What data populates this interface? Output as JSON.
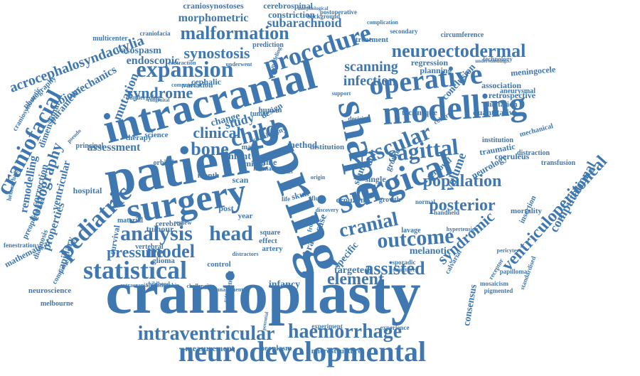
{
  "color": "#3f78b1",
  "words": [
    "cranioplasty",
    "spring",
    "patient",
    "intracranial",
    "neurodevelopmental",
    "surgery",
    "shape",
    "surgical",
    "modelling",
    "operative",
    "pediatric",
    "statistical",
    "expansion",
    "analysis",
    "head",
    "craniofacial",
    "vascular",
    "sagittal",
    "ventriculoperitoneal",
    "outcome",
    "procedure",
    "malformation",
    "neuroectodermal",
    "intraventricular",
    "haemorrhage",
    "posterior",
    "population",
    "cranial",
    "assisted",
    "child",
    "model",
    "synostosis",
    "acrocephalosyndactylia",
    "infection",
    "scanning",
    "clinical",
    "bone",
    "pressure",
    "syndromic",
    "tomography",
    "syndrome",
    "element",
    "computational",
    "endoscopic",
    "mutation",
    "subarachnoid",
    "vasospasm",
    "biomechanics",
    "morphometric",
    "craniosynostoses",
    "cerebrospinal",
    "constriction",
    "conclusion",
    "volume",
    "association",
    "retrospective",
    "technique",
    "study",
    "change",
    "infant",
    "assessment",
    "dimensional",
    "parameter",
    "correction",
    "ventricular",
    "properties",
    "capillary",
    "remodelling",
    "mathematical",
    "consensus",
    "targeted",
    "specific",
    "infancy",
    "brain",
    "case",
    "shunt",
    "fault",
    "group",
    "neurology",
    "coeruleus",
    "traumatic",
    "mortality",
    "insertion",
    "transfusion",
    "melanotic",
    "tumour",
    "survival",
    "vertebral",
    "glioma",
    "control",
    "measurement",
    "neoplasm",
    "microstructure",
    "experiment",
    "experience",
    "craniofacia",
    "multicenter",
    "treatment",
    "secondary",
    "circumference",
    "regression",
    "prediction",
    "understanding",
    "technology",
    "meningocele",
    "aneurysmal",
    "dilatation",
    "quantitative",
    "institution",
    "mechanical",
    "distraction",
    "removal",
    "craniotomy",
    "planning",
    "variation",
    "cephalic",
    "undergoing",
    "material",
    "cerebral",
    "orbital",
    "therapy",
    "hospital",
    "preoperative",
    "diagnosis",
    "fenestration",
    "neuroscience",
    "melbourne",
    "postoperative",
    "morphological",
    "background",
    "complication",
    "photography",
    "craniosynostotic",
    "hemorrhage",
    "component",
    "fronto",
    "pigmented",
    "mosaicism",
    "standardised",
    "hypertension",
    "calvarial",
    "handheld",
    "crouzon",
    "single",
    "lavage",
    "growth",
    "normal",
    "sporadic",
    "artery",
    "effect",
    "square",
    "post",
    "year",
    "micro",
    "scan",
    "time",
    "locus",
    "skull",
    "method",
    "design",
    "human",
    "tumor",
    "institution",
    "month",
    "science",
    "principal",
    "mapk",
    "contraction",
    "underwent",
    "computed",
    "congenital",
    "modeling",
    "support",
    "decision",
    "cohort",
    "receptor",
    "papilloma",
    "pericytes",
    "childhood",
    "relationship",
    "extracranial",
    "challenging",
    "management",
    "potential",
    "differential",
    "structure",
    "distractors",
    "pseudo",
    "lacunae",
    "rate",
    "life",
    "fluid",
    "review",
    "discovery",
    "origin",
    "series"
  ]
}
